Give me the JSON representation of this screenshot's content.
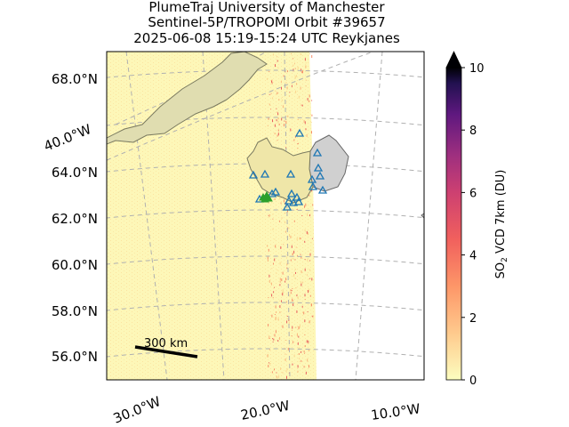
{
  "title": {
    "line1": "PlumeTraj    University of Manchester",
    "line2": "Sentinel-5P/TROPOMI Orbit #39657",
    "line3": "2025-06-08   15:19-15:24 UTC   Reykjanes"
  },
  "chart_data": {
    "type": "heatmap",
    "title": "PlumeTraj    University of Manchester / Sentinel-5P/TROPOMI Orbit #39657 / 2025-06-08   15:19-15:24 UTC   Reykjanes",
    "lat_ticks": [
      "68.0°N",
      "64.0°N",
      "62.0°N",
      "60.0°N",
      "58.0°N",
      "56.0°N"
    ],
    "lon_ticks": [
      "40.0°W",
      "30.0°W",
      "20.0°W",
      "10.0°W"
    ],
    "scale_bar_label": "300 km",
    "colorbar": {
      "label": "SO₂ VCD 7km (DU)",
      "label_main": "SO",
      "label_sub": "2",
      "label_rest": " VCD 7km (DU)",
      "min": 0,
      "max": 10,
      "extend": "max",
      "ticks": [
        "0",
        "2",
        "4",
        "6",
        "8",
        "10"
      ],
      "colormap": "magma_r"
    },
    "volcano_marker_color": "#2ca02c",
    "station_marker_color": "#1f77b4"
  }
}
